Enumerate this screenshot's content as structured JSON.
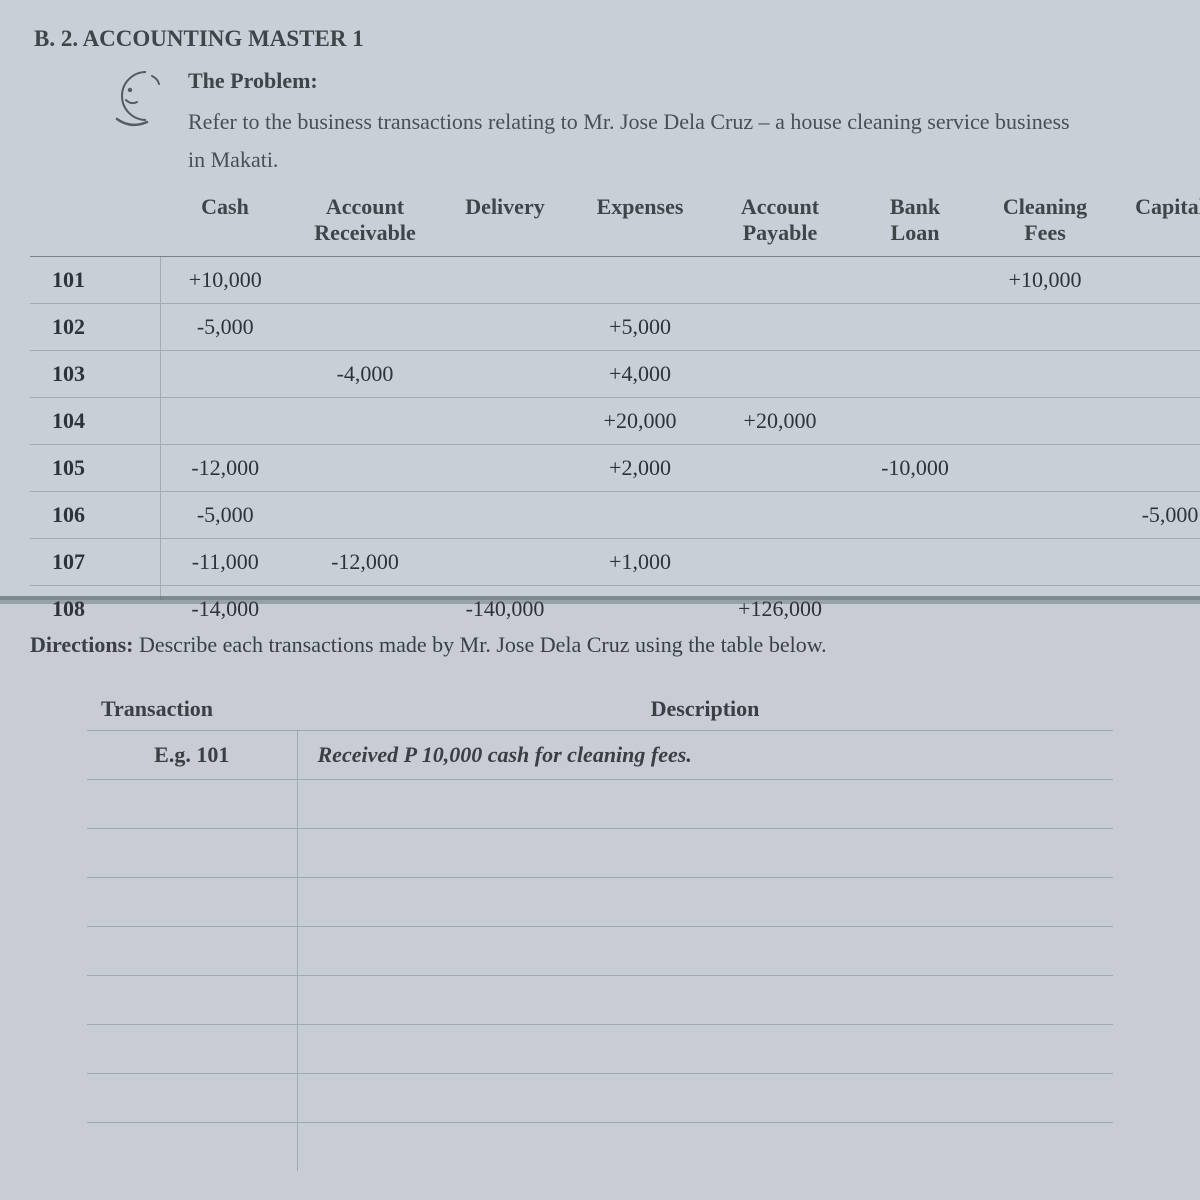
{
  "styling": {
    "page_bg_top": "#c9cfd7",
    "page_bg_bottom": "#c7ccd5",
    "divider_color": "#7f8790",
    "grid_line_color": "rgba(90,100,110,0.35)",
    "print_text_color": "#3a3f44",
    "handwriting_font": "Comic Sans MS",
    "print_font": "Times New Roman",
    "print_fontsize_pt": 16,
    "handwriting_fontsize_pt": 16
  },
  "header": {
    "section_title": "B. 2. ACCOUNTING MASTER 1",
    "problem_heading": "The Problem:",
    "problem_body": "Refer to the business transactions relating to Mr. Jose Dela Cruz – a house cleaning service business in Makati."
  },
  "ledger": {
    "columns": [
      {
        "key": "num",
        "label1": "",
        "label2": ""
      },
      {
        "key": "cash",
        "label1": "Cash",
        "label2": ""
      },
      {
        "key": "ar",
        "label1": "Account",
        "label2": "Receivable"
      },
      {
        "key": "del",
        "label1": "Delivery",
        "label2": ""
      },
      {
        "key": "exp",
        "label1": "Expenses",
        "label2": ""
      },
      {
        "key": "ap",
        "label1": "Account",
        "label2": "Payable"
      },
      {
        "key": "bank",
        "label1": "Bank",
        "label2": "Loan"
      },
      {
        "key": "clean",
        "label1": "Cleaning",
        "label2": "Fees"
      },
      {
        "key": "cap",
        "label1": "Capital",
        "label2": ""
      }
    ],
    "rows": [
      {
        "num": "101",
        "cash": "+10,000",
        "ar": "",
        "del": "",
        "exp": "",
        "ap": "",
        "bank": "",
        "clean": "+10,000",
        "cap": ""
      },
      {
        "num": "102",
        "cash": "-5,000",
        "ar": "",
        "del": "",
        "exp": "+5,000",
        "ap": "",
        "bank": "",
        "clean": "",
        "cap": ""
      },
      {
        "num": "103",
        "cash": "",
        "ar": "-4,000",
        "del": "",
        "exp": "+4,000",
        "ap": "",
        "bank": "",
        "clean": "",
        "cap": ""
      },
      {
        "num": "104",
        "cash": "",
        "ar": "",
        "del": "",
        "exp": "+20,000",
        "ap": "+20,000",
        "bank": "",
        "clean": "",
        "cap": ""
      },
      {
        "num": "105",
        "cash": "-12,000",
        "ar": "",
        "del": "",
        "exp": "+2,000",
        "ap": "",
        "bank": "-10,000",
        "clean": "",
        "cap": ""
      },
      {
        "num": "106",
        "cash": "-5,000",
        "ar": "",
        "del": "",
        "exp": "",
        "ap": "",
        "bank": "",
        "clean": "",
        "cap": "-5,000"
      },
      {
        "num": "107",
        "cash": "-11,000",
        "ar": "-12,000",
        "del": "",
        "exp": "+1,000",
        "ap": "",
        "bank": "",
        "clean": "",
        "cap": ""
      },
      {
        "num": "108",
        "cash": "-14,000",
        "ar": "",
        "del": "-140,000",
        "exp": "",
        "ap": "+126,000",
        "bank": "",
        "clean": "",
        "cap": ""
      }
    ]
  },
  "directions": {
    "label": "Directions:",
    "text": "Describe each transactions made by Mr. Jose Dela Cruz using the table below."
  },
  "desc_table": {
    "headers": {
      "transaction": "Transaction",
      "description": "Description"
    },
    "example": {
      "transaction": "E.g. 101",
      "description": "Received P 10,000 cash for cleaning fees."
    },
    "blank_row_count": 8
  }
}
